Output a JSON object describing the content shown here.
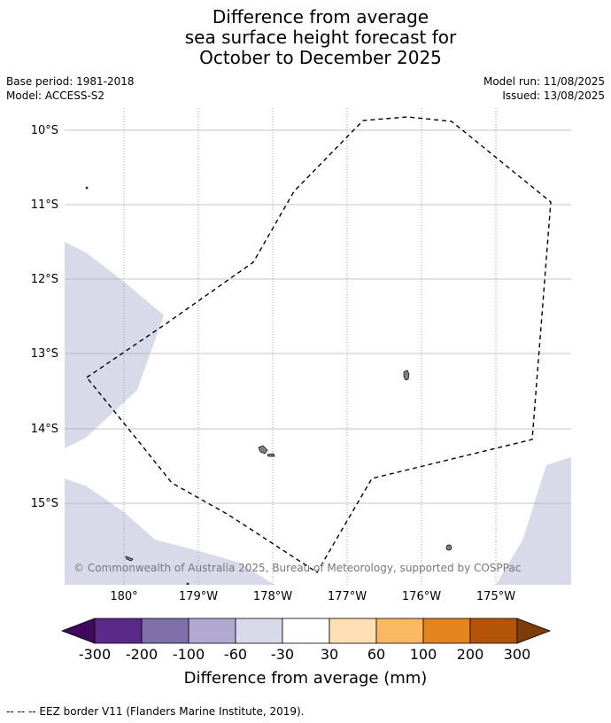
{
  "title": {
    "line1": "Difference from average",
    "line2": "sea surface height forecast for",
    "line3": "October to December 2025"
  },
  "meta": {
    "base_period": "Base period: 1981-2018",
    "model": "Model: ACCESS-S2",
    "model_run": "Model run: 11/08/2025",
    "issued": "Issued: 13/08/2025"
  },
  "map": {
    "lat_labels": [
      "10°S",
      "11°S",
      "12°S",
      "13°S",
      "14°S",
      "15°S"
    ],
    "lon_labels": [
      "180°",
      "179°W",
      "178°W",
      "177°W",
      "176°W",
      "175°W"
    ],
    "copyright": "© Commonwealth of Australia 2025, Bureau of Meteorology, supported by COSPPac",
    "anomaly_fill_category": "-60 to -30",
    "colors": {
      "ocean": "#ffffff",
      "anomaly_fill": "#d8d9e9",
      "land": "#808080",
      "grid": "#b0b0b0"
    }
  },
  "colorbar": {
    "ticks": [
      "-300",
      "-200",
      "-100",
      "-60",
      "-30",
      "30",
      "60",
      "100",
      "200",
      "300"
    ],
    "colors": [
      "#3f0a5e",
      "#5a2a8a",
      "#7f6fab",
      "#b1a9d0",
      "#d8d9e9",
      "#ffffff",
      "#fde0b4",
      "#fbb862",
      "#e5841c",
      "#b25508",
      "#7f3b08"
    ],
    "label": "Difference from average (mm)"
  },
  "legend": {
    "eez_text": "--  --  -- EEZ border V11 (Flanders Marine Institute, 2019)."
  }
}
